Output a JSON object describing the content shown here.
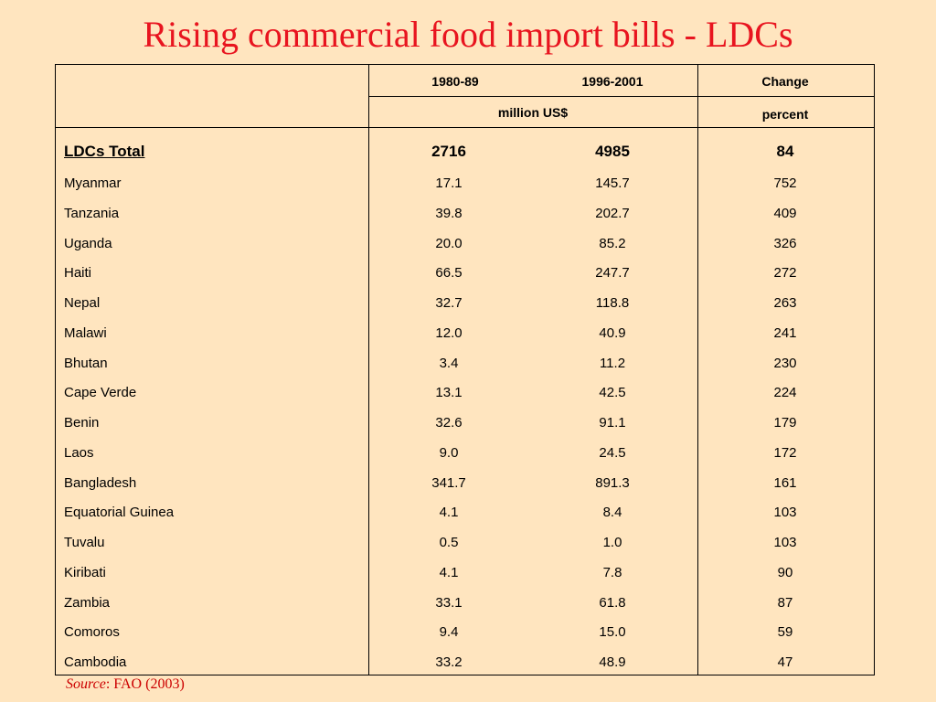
{
  "title": "Rising commercial food import bills - LDCs",
  "header": {
    "col_1980": "1980-89",
    "col_1996": "1996-2001",
    "col_change": "Change",
    "unit_values": "million US$",
    "unit_change": "percent"
  },
  "total": {
    "name": "LDCs Total",
    "v1980": "2716",
    "v1996": "4985",
    "change": "84"
  },
  "rows": [
    {
      "name": "Myanmar",
      "v1980": "17.1",
      "v1996": "145.7",
      "change": "752"
    },
    {
      "name": "Tanzania",
      "v1980": "39.8",
      "v1996": "202.7",
      "change": "409"
    },
    {
      "name": "Uganda",
      "v1980": "20.0",
      "v1996": "85.2",
      "change": "326"
    },
    {
      "name": "Haiti",
      "v1980": "66.5",
      "v1996": "247.7",
      "change": "272"
    },
    {
      "name": "Nepal",
      "v1980": "32.7",
      "v1996": "118.8",
      "change": "263"
    },
    {
      "name": "Malawi",
      "v1980": "12.0",
      "v1996": "40.9",
      "change": "241"
    },
    {
      "name": "Bhutan",
      "v1980": "3.4",
      "v1996": "11.2",
      "change": "230"
    },
    {
      "name": "Cape Verde",
      "v1980": "13.1",
      "v1996": "42.5",
      "change": "224"
    },
    {
      "name": "Benin",
      "v1980": "32.6",
      "v1996": "91.1",
      "change": "179"
    },
    {
      "name": "Laos",
      "v1980": "9.0",
      "v1996": "24.5",
      "change": "172"
    },
    {
      "name": "Bangladesh",
      "v1980": "341.7",
      "v1996": "891.3",
      "change": "161"
    },
    {
      "name": "Equatorial Guinea",
      "v1980": "4.1",
      "v1996": "8.4",
      "change": "103"
    },
    {
      "name": "Tuvalu",
      "v1980": "0.5",
      "v1996": "1.0",
      "change": "103"
    },
    {
      "name": "Kiribati",
      "v1980": "4.1",
      "v1996": "7.8",
      "change": "90"
    },
    {
      "name": "Zambia",
      "v1980": "33.1",
      "v1996": "61.8",
      "change": "87"
    },
    {
      "name": "Comoros",
      "v1980": "9.4",
      "v1996": "15.0",
      "change": "59"
    },
    {
      "name": "Cambodia",
      "v1980": "33.2",
      "v1996": "48.9",
      "change": "47"
    }
  ],
  "source": {
    "label": "Source",
    "text": ": FAO (2003)"
  }
}
